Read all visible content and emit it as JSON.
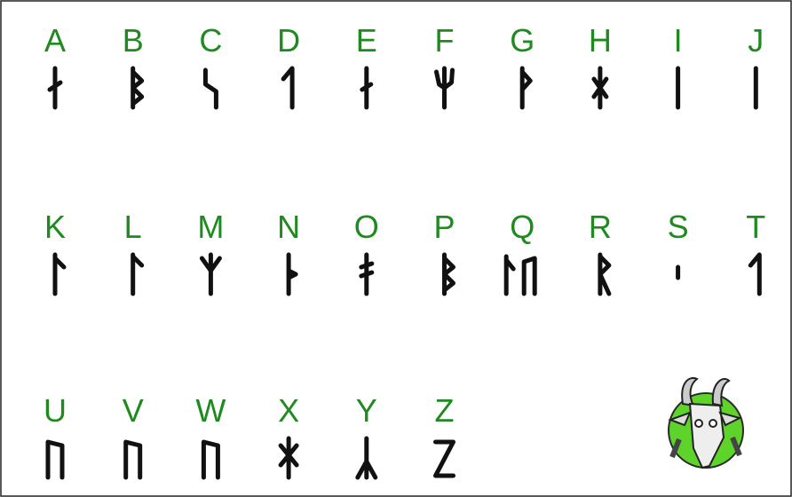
{
  "rows": [
    [
      "A",
      "B",
      "C",
      "D",
      "E",
      "F",
      "G",
      "H",
      "I",
      "J"
    ],
    [
      "K",
      "L",
      "M",
      "N",
      "O",
      "P",
      "Q",
      "R",
      "S",
      "T"
    ],
    [
      "U",
      "V",
      "W",
      "X",
      "Y",
      "Z"
    ]
  ]
}
